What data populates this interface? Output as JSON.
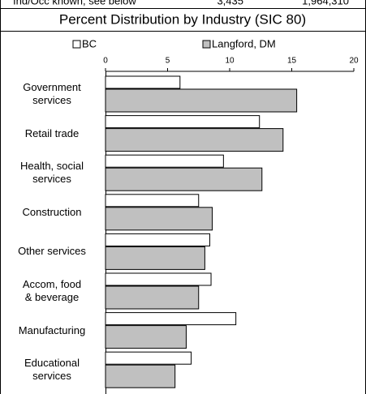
{
  "header": {
    "row": [
      "Ind/Occ known, see below",
      "3,435",
      "1,964,310"
    ]
  },
  "chart_data": {
    "type": "hbar",
    "title": "Percent Distribution by Industry (SIC 80)",
    "categories": [
      "Government services",
      "Retail trade",
      "Health, social services",
      "Construction",
      "Other services",
      "Accom, food & beverage",
      "Manufacturing",
      "Educational services"
    ],
    "series": [
      {
        "name": "BC",
        "color": "#ffffff",
        "values": [
          6.0,
          12.4,
          9.5,
          7.5,
          8.4,
          8.5,
          10.5,
          6.9
        ]
      },
      {
        "name": "Langford, DM",
        "color": "#c0c0c0",
        "values": [
          15.4,
          14.3,
          12.6,
          8.6,
          8.0,
          7.5,
          6.5,
          5.6
        ]
      }
    ],
    "xlim": [
      0,
      20
    ],
    "xticks": [
      0,
      5,
      10,
      15,
      20
    ],
    "legend": "top"
  }
}
